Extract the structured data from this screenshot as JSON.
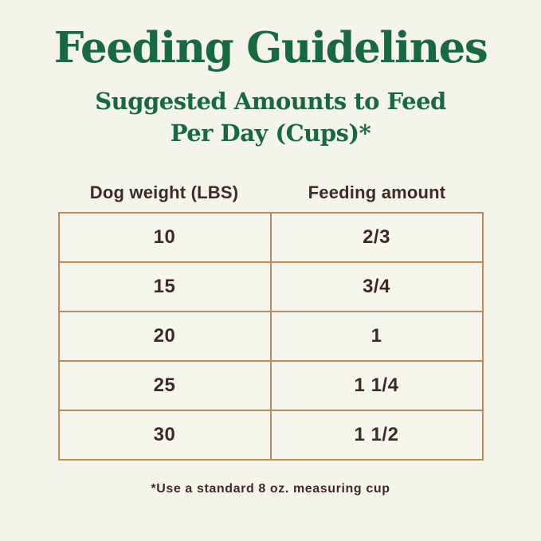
{
  "title": "Feeding Guidelines",
  "subtitle": {
    "line1": "Suggested Amounts to Feed",
    "line2": "Per Day (Cups)*"
  },
  "table": {
    "columns": [
      "Dog weight (LBS)",
      "Feeding amount"
    ],
    "rows": [
      [
        "10",
        "2/3"
      ],
      [
        "15",
        "3/4"
      ],
      [
        "20",
        "1"
      ],
      [
        "25",
        "1 1/4"
      ],
      [
        "30",
        "1 1/2"
      ]
    ]
  },
  "footnote": "*Use a standard 8 oz. measuring cup",
  "colors": {
    "background": "#f5f4ec",
    "heading_green": "#17693f",
    "table_border_tan": "#bc8c58",
    "text_brown": "#3e2b24"
  },
  "chart_data": {
    "type": "table",
    "title": "Feeding Guidelines",
    "subtitle": "Suggested Amounts to Feed Per Day (Cups)*",
    "columns": [
      "Dog weight (LBS)",
      "Feeding amount"
    ],
    "rows": [
      [
        "10",
        "2/3"
      ],
      [
        "15",
        "3/4"
      ],
      [
        "20",
        "1"
      ],
      [
        "25",
        "1 1/4"
      ],
      [
        "30",
        "1 1/2"
      ]
    ],
    "footnote": "*Use a standard 8 oz. measuring cup",
    "legend": "none",
    "grid": "full-borders"
  }
}
